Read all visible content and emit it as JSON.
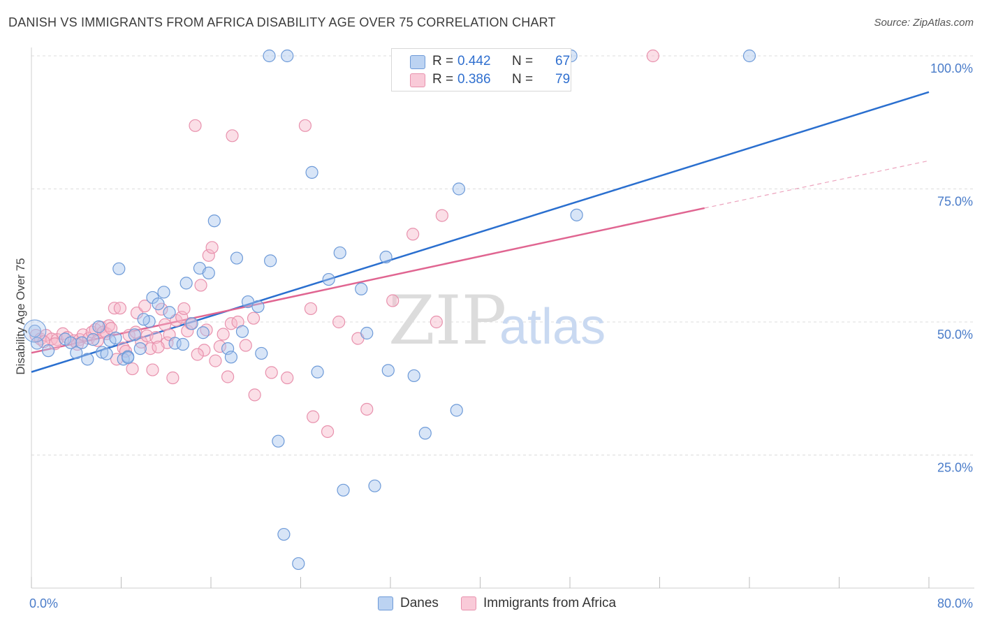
{
  "title": "DANISH VS IMMIGRANTS FROM AFRICA DISABILITY AGE OVER 75 CORRELATION CHART",
  "source": "Source: ZipAtlas.com",
  "watermark": {
    "part1": "ZIP",
    "part2": "atlas"
  },
  "colors": {
    "danes_fill": "#a9c6ee",
    "danes_stroke": "#6d9ad8",
    "danes_line": "#2a6fcf",
    "africa_fill": "#f6b8ca",
    "africa_stroke": "#e891ad",
    "africa_line": "#e06591",
    "tick": "#4a7cc9",
    "grid": "#dcdcdc"
  },
  "legend": {
    "rows": [
      {
        "r_label": "R =",
        "r_value": "0.442",
        "n_label": "N =",
        "n_value": "67"
      },
      {
        "r_label": "R =",
        "r_value": "0.386",
        "n_label": "N =",
        "n_value": "79"
      }
    ]
  },
  "bottom_legend": {
    "danes": "Danes",
    "africa": "Immigrants from Africa"
  },
  "chart_data": {
    "type": "scatter",
    "title": "DANISH VS IMMIGRANTS FROM AFRICA DISABILITY AGE OVER 75 CORRELATION CHART",
    "xlabel": "",
    "ylabel": "Disability Age Over 75",
    "xlim": [
      0,
      80
    ],
    "ylim": [
      0,
      100
    ],
    "x_tick_labels": [
      "0.0%",
      "80.0%"
    ],
    "y_ticks": [
      25,
      50,
      75,
      100
    ],
    "y_tick_labels": [
      "25.0%",
      "50.0%",
      "75.0%",
      "100.0%"
    ],
    "grid": true,
    "legend_position": "top-center",
    "series": [
      {
        "name": "Danes",
        "R": 0.442,
        "N": 67,
        "trend": {
          "x": [
            0,
            80
          ],
          "y": [
            40.6,
            93.2
          ]
        },
        "points": [
          [
            0.3,
            48.3
          ],
          [
            0.5,
            46
          ],
          [
            1.5,
            44.6
          ],
          [
            3,
            46.8
          ],
          [
            3.5,
            46.1
          ],
          [
            4.5,
            46.1
          ],
          [
            4,
            44.2
          ],
          [
            5,
            43
          ],
          [
            5.5,
            46.7
          ],
          [
            6,
            49.1
          ],
          [
            6.3,
            44.3
          ],
          [
            7,
            46.5
          ],
          [
            7.5,
            47
          ],
          [
            7.8,
            60
          ],
          [
            8.2,
            43
          ],
          [
            8.6,
            43.5
          ],
          [
            9.2,
            47.6
          ],
          [
            9.7,
            45
          ],
          [
            10.5,
            50.1
          ],
          [
            10.8,
            54.6
          ],
          [
            11.3,
            53.4
          ],
          [
            11.8,
            55.6
          ],
          [
            12.3,
            51.8
          ],
          [
            12.8,
            46
          ],
          [
            13.5,
            45.8
          ],
          [
            13.8,
            57.3
          ],
          [
            14.3,
            49.7
          ],
          [
            15,
            60.1
          ],
          [
            15.3,
            48
          ],
          [
            15.8,
            59.2
          ],
          [
            16.3,
            69
          ],
          [
            17.5,
            45
          ],
          [
            17.8,
            43.4
          ],
          [
            18.3,
            62
          ],
          [
            18.8,
            48.2
          ],
          [
            19.3,
            53.8
          ],
          [
            20.2,
            52.9
          ],
          [
            20.5,
            44.1
          ],
          [
            21.2,
            100
          ],
          [
            21.3,
            61.5
          ],
          [
            22,
            27.6
          ],
          [
            22.5,
            10.1
          ],
          [
            22.8,
            100
          ],
          [
            23.8,
            4.6
          ],
          [
            25,
            78.1
          ],
          [
            25.5,
            40.6
          ],
          [
            26.5,
            58
          ],
          [
            27.5,
            63
          ],
          [
            27.8,
            18.4
          ],
          [
            29.4,
            56.2
          ],
          [
            29.9,
            47.9
          ],
          [
            30.6,
            19.2
          ],
          [
            31.6,
            62.2
          ],
          [
            31.8,
            40.9
          ],
          [
            34.1,
            39.9
          ],
          [
            35.1,
            29.1
          ],
          [
            37.9,
            33.4
          ],
          [
            38.1,
            75
          ],
          [
            40.1,
            100
          ],
          [
            40.6,
            100
          ],
          [
            47.6,
            100
          ],
          [
            48.1,
            100
          ],
          [
            48.6,
            70.1
          ],
          [
            64,
            100
          ],
          [
            10,
            50.5
          ],
          [
            8.6,
            43.3
          ],
          [
            6.7,
            44
          ]
        ]
      },
      {
        "name": "Immigrants from Africa",
        "R": 0.386,
        "N": 79,
        "trend": {
          "x": [
            0,
            60
          ],
          "y": [
            44.2,
            71.4
          ]
        },
        "trend_dashed": {
          "x": [
            60,
            80
          ],
          "y": [
            71.4,
            80.3
          ]
        },
        "points": [
          [
            0.4,
            47.5
          ],
          [
            0.8,
            46.8
          ],
          [
            1.3,
            47.5
          ],
          [
            1.8,
            46.8
          ],
          [
            2.3,
            46.7
          ],
          [
            2.8,
            47.8
          ],
          [
            3.2,
            47.1
          ],
          [
            3.8,
            46.5
          ],
          [
            4.3,
            46.7
          ],
          [
            4.6,
            47.6
          ],
          [
            5.1,
            46.9
          ],
          [
            5.4,
            48.1
          ],
          [
            5.7,
            48.6
          ],
          [
            6.2,
            49
          ],
          [
            6.4,
            48.1
          ],
          [
            6.7,
            47.8
          ],
          [
            6.9,
            49.3
          ],
          [
            7.1,
            48.8
          ],
          [
            7.4,
            52.6
          ],
          [
            7.6,
            43
          ],
          [
            7.9,
            52.6
          ],
          [
            8.2,
            45.1
          ],
          [
            8.4,
            44.5
          ],
          [
            8.7,
            47.5
          ],
          [
            9,
            41.2
          ],
          [
            9.3,
            48.1
          ],
          [
            9.4,
            51.7
          ],
          [
            9.8,
            46.2
          ],
          [
            10.1,
            53
          ],
          [
            10.3,
            47.4
          ],
          [
            10.6,
            45
          ],
          [
            10.8,
            41
          ],
          [
            11.1,
            47.1
          ],
          [
            11.6,
            52.4
          ],
          [
            11.9,
            49.5
          ],
          [
            12.1,
            46.1
          ],
          [
            12.3,
            47.6
          ],
          [
            12.6,
            39.5
          ],
          [
            12.9,
            50.3
          ],
          [
            13.4,
            50.9
          ],
          [
            13.6,
            52.5
          ],
          [
            13.9,
            48.3
          ],
          [
            14.2,
            49.7
          ],
          [
            14.6,
            86.9
          ],
          [
            15.1,
            56.9
          ],
          [
            15.4,
            44.7
          ],
          [
            15.8,
            62.5
          ],
          [
            16.1,
            64
          ],
          [
            16.4,
            42.7
          ],
          [
            16.8,
            45.4
          ],
          [
            17.1,
            47.7
          ],
          [
            17.5,
            39.7
          ],
          [
            17.8,
            49.7
          ],
          [
            17.9,
            85
          ],
          [
            18.4,
            50
          ],
          [
            19.1,
            45.6
          ],
          [
            19.9,
            36.3
          ],
          [
            21.4,
            40.5
          ],
          [
            22.8,
            39.5
          ],
          [
            24.4,
            86.9
          ],
          [
            24.9,
            52.5
          ],
          [
            25.1,
            32.2
          ],
          [
            26.4,
            29.4
          ],
          [
            27.4,
            50
          ],
          [
            29.1,
            46.9
          ],
          [
            29.9,
            33.6
          ],
          [
            32.2,
            54
          ],
          [
            34,
            66.5
          ],
          [
            36.1,
            50
          ],
          [
            36.6,
            70
          ],
          [
            55.4,
            100
          ],
          [
            5.9,
            46.5
          ],
          [
            4.1,
            45.8
          ],
          [
            2.1,
            45.9
          ],
          [
            1.1,
            46.3
          ],
          [
            15.6,
            48.5
          ],
          [
            11.3,
            45.3
          ],
          [
            14.8,
            43.9
          ],
          [
            19.8,
            50.7
          ]
        ]
      }
    ]
  }
}
